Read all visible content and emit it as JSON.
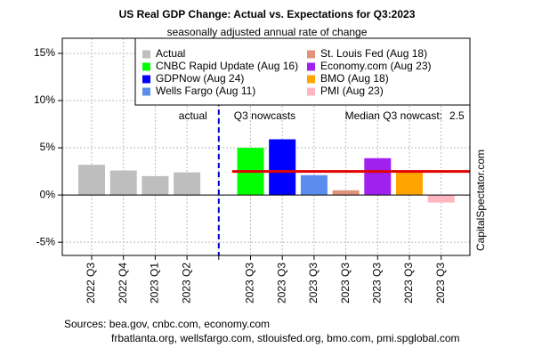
{
  "chart_data": {
    "type": "bar",
    "title": "US Real GDP Change: Actual vs. Expectations for Q3:2023",
    "subtitle": "seasonally adjusted annual rate of change",
    "categories": [
      "2022 Q3",
      "2022 Q4",
      "2023 Q1",
      "2023 Q2",
      null,
      "2023 Q3",
      "2023 Q3",
      "2023 Q3",
      "2023 Q3",
      "2023 Q3",
      "2023 Q3",
      "2023 Q3"
    ],
    "series": [
      {
        "name": "Actual",
        "color": "#bebebe",
        "values": [
          3.2,
          2.6,
          2.0,
          2.4,
          null,
          null,
          null,
          null,
          null,
          null,
          null,
          null
        ]
      },
      {
        "name": "CNBC Rapid Update (Aug 16)",
        "color": "#00ff00",
        "values": [
          null,
          null,
          null,
          null,
          null,
          5.0,
          null,
          null,
          null,
          null,
          null,
          null
        ]
      },
      {
        "name": "GDPNow (Aug 24)",
        "color": "#0000ff",
        "values": [
          null,
          null,
          null,
          null,
          null,
          null,
          5.9,
          null,
          null,
          null,
          null,
          null
        ]
      },
      {
        "name": "Wells Fargo (Aug 11)",
        "color": "#5b8def",
        "values": [
          null,
          null,
          null,
          null,
          null,
          null,
          null,
          2.1,
          null,
          null,
          null,
          null
        ]
      },
      {
        "name": "St. Louis Fed (Aug 18)",
        "color": "#e0937a",
        "values": [
          null,
          null,
          null,
          null,
          null,
          null,
          null,
          null,
          0.5,
          null,
          null,
          null
        ]
      },
      {
        "name": "Economy.com (Aug 23)",
        "color": "#a020f0",
        "values": [
          null,
          null,
          null,
          null,
          null,
          null,
          null,
          null,
          null,
          3.9,
          null,
          null
        ]
      },
      {
        "name": "BMO (Aug 18)",
        "color": "#ffa500",
        "values": [
          null,
          null,
          null,
          null,
          null,
          null,
          null,
          null,
          null,
          null,
          2.5,
          null
        ]
      },
      {
        "name": "PMI (Aug 23)",
        "color": "#ffb6c1",
        "values": [
          null,
          null,
          null,
          null,
          null,
          null,
          null,
          null,
          null,
          null,
          null,
          -0.8
        ]
      }
    ],
    "median": 2.5,
    "median_color": "#e00000",
    "median_label": "Median Q3 nowcast:",
    "divider_color": "#0000cc",
    "actual_label": "actual",
    "nowcast_label": "Q3 nowcasts",
    "watermark": "CapitalSpectator.com",
    "sources": [
      "Sources: bea.gov, cnbc.com, economy.com",
      "frbatlanta.org, wellsfargo.com, stlouisfed.org, bmo.com, pmi.spglobal.com"
    ],
    "ylim": [
      -6.4,
      16.6
    ],
    "yticks": [
      {
        "value": -5,
        "label": "-5%"
      },
      {
        "value": 0,
        "label": "0%"
      },
      {
        "value": 5,
        "label": "5%"
      },
      {
        "value": 10,
        "label": "10%"
      },
      {
        "value": 15,
        "label": "15%"
      }
    ],
    "grid": true
  }
}
